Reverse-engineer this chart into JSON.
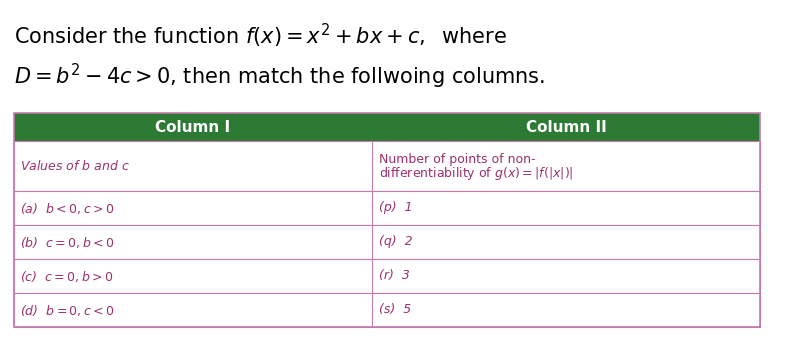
{
  "title_line1": "Consider the function $f(x) = x^2 + bx + c,\\;$ where",
  "title_line2": "$D = b^2 - 4c > 0$, then match the follwoing columns.",
  "header_bg": "#2d7a35",
  "header_text_color": "#ffffff",
  "col1_header": "Column I",
  "col2_header": "Column II",
  "subheader_col1": "Values of $b$ and $c$",
  "subheader_col2_line1": "Number of points of non-",
  "subheader_col2_line2": "differentiability of $g(x) = |f(|x|)|$",
  "rows": [
    [
      "(a)  $b < 0, c > 0$",
      "(p)  1"
    ],
    [
      "(b)  $c = 0, b < 0$",
      "(q)  2"
    ],
    [
      "(c)  $c = 0, b > 0$",
      "(r)  3"
    ],
    [
      "(d)  $b = 0, c < 0$",
      "(s)  5"
    ]
  ],
  "row_line_color": "#c47aaa",
  "cell_text_color": "#9b3070",
  "subheader_text_color": "#9b3070",
  "table_border_color": "#c47aaa",
  "fig_bg": "#ffffff",
  "title_fontsize": 15,
  "header_fontsize": 11,
  "cell_fontsize": 9,
  "subheader_fontsize": 9
}
